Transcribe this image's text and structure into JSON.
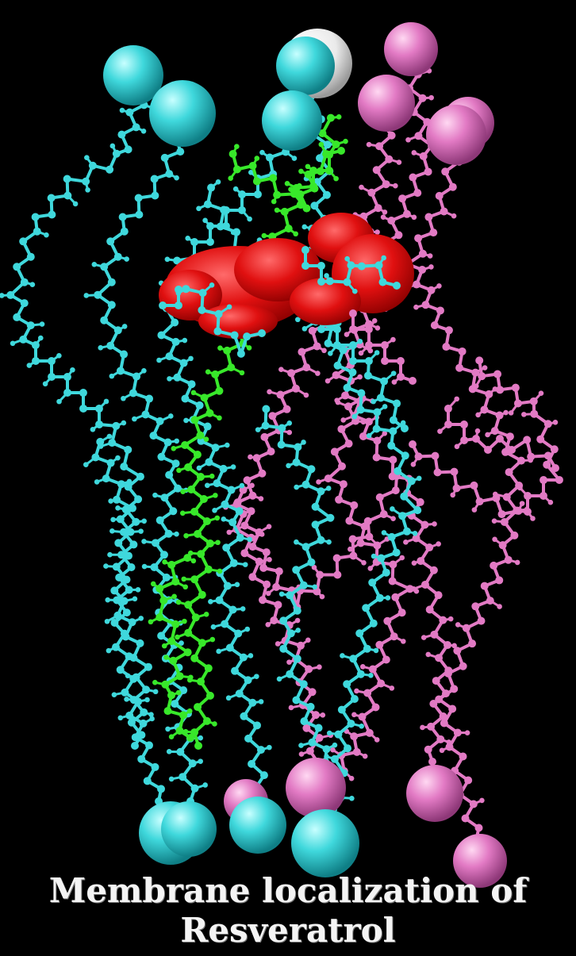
{
  "caption": {
    "line1": "Membrane localization of",
    "line2": "Resveratrol"
  },
  "colors": {
    "background": "#000000",
    "lipid_cyan": "#3fd8dc",
    "lipid_pink": "#e27ac4",
    "cholesterol_green": "#38e82a",
    "resveratrol_red": "#e01010",
    "head_white": "#f2f2f2",
    "caption_text": "#f4f4f4"
  }
}
